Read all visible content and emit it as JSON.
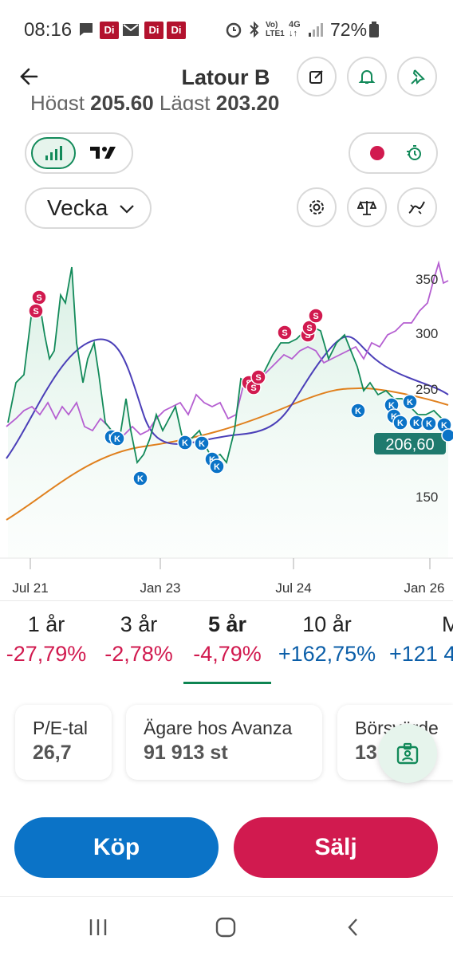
{
  "status_bar": {
    "time": "08:16",
    "di_label": "Di",
    "network": "4G",
    "battery": "72%"
  },
  "header": {
    "title": "Latour B",
    "back_icon": "arrow-left-icon",
    "actions": [
      "edit-icon",
      "bell-icon",
      "pin-icon"
    ]
  },
  "partial_row": {
    "high_label": "Högst",
    "high_value": "205,60",
    "low_label": "Lägst",
    "low_value": "203,20"
  },
  "toolbar": {
    "chart_mode_icons": [
      "bar-chart-icon",
      "tradingview-icon"
    ],
    "record_icon": "record-dot-icon",
    "timer_icon": "stopwatch-icon",
    "interval": "Vecka",
    "tool_icons": [
      "settings-icon",
      "compare-scale-icon",
      "indicator-icon"
    ]
  },
  "chart": {
    "y_ticks": [
      "350",
      "300",
      "250",
      "150"
    ],
    "x_ticks": [
      "Jul 21",
      "Jan 23",
      "Jul 24",
      "Jan 26"
    ],
    "current_price": "206,60",
    "buy_marker": "K",
    "sell_marker": "S",
    "colors": {
      "price": "#138a5a",
      "ma_short": "#4b3fb8",
      "ma_long": "#e0801e",
      "compare": "#b55fd1",
      "sell": "#d11a4f",
      "buy": "#0b73c7"
    }
  },
  "periods": [
    {
      "label": "1 år",
      "value": "-27,79%",
      "color": "#d11a4f"
    },
    {
      "label": "3 år",
      "value": "-2,78%",
      "color": "#d11a4f"
    },
    {
      "label": "5 år",
      "value": "-4,79%",
      "color": "#d11a4f",
      "selected": true
    },
    {
      "label": "10 år",
      "value": "+162,75%",
      "color": "#0b5ea8"
    },
    {
      "label": "M",
      "value": "+121 4",
      "color": "#0b5ea8"
    }
  ],
  "cards": [
    {
      "label": "P/E-tal",
      "value": "26,7"
    },
    {
      "label": "Ägare hos Avanza",
      "value": "91 913 st"
    },
    {
      "label": "Börsvärde",
      "value": "13 ,9"
    }
  ],
  "actions": {
    "buy": "Köp",
    "sell": "Sälj"
  },
  "nav": [
    "recent-apps-icon",
    "home-icon",
    "back-nav-icon"
  ]
}
